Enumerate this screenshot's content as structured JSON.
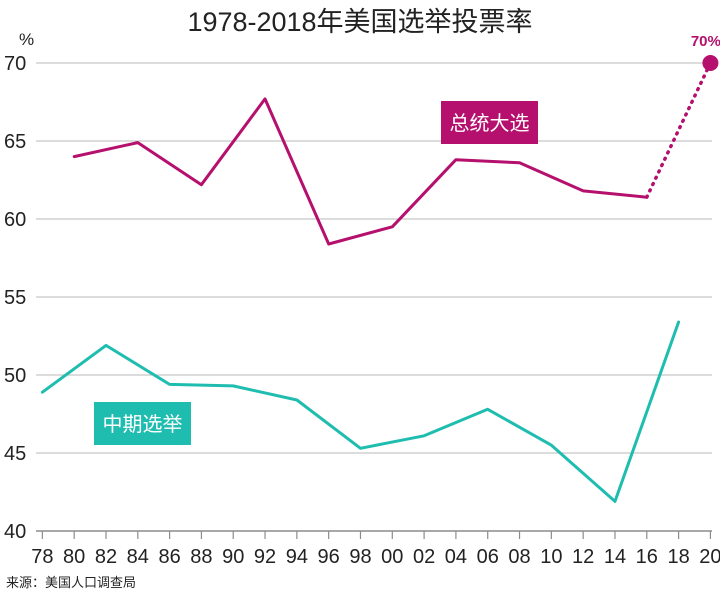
{
  "chart_data": {
    "type": "line",
    "title": "1978-2018年美国选举投票率",
    "y_unit": "%",
    "ylim": [
      40,
      70
    ],
    "xlim": [
      1977.6,
      2020.1
    ],
    "yticks": [
      40,
      45,
      50,
      55,
      60,
      65,
      70
    ],
    "ytick_labels": [
      "40",
      "45",
      "50",
      "55",
      "60",
      "65",
      "70"
    ],
    "xticks": [
      1978,
      1980,
      1982,
      1984,
      1986,
      1988,
      1990,
      1992,
      1994,
      1996,
      1998,
      2000,
      2002,
      2004,
      2006,
      2008,
      2010,
      2012,
      2014,
      2016,
      2018,
      2020
    ],
    "xtick_labels": [
      "78",
      "80",
      "82",
      "84",
      "86",
      "88",
      "90",
      "92",
      "94",
      "96",
      "98",
      "00",
      "02",
      "04",
      "06",
      "08",
      "10",
      "12",
      "14",
      "16",
      "18",
      "20"
    ],
    "grid": "horizontal",
    "series": [
      {
        "name": "总统大选",
        "color": "#b5106d",
        "x": [
          1980,
          1984,
          1988,
          1992,
          1996,
          2000,
          2004,
          2008,
          2012,
          2016
        ],
        "values": [
          64.0,
          64.9,
          62.2,
          67.7,
          58.4,
          59.5,
          63.8,
          63.6,
          61.8,
          61.4
        ]
      },
      {
        "name": "中期选举",
        "color": "#1fbdb0",
        "x": [
          1978,
          1982,
          1986,
          1990,
          1994,
          1998,
          2002,
          2006,
          2010,
          2014,
          2018
        ],
        "values": [
          48.9,
          51.9,
          49.4,
          49.3,
          48.4,
          45.3,
          46.1,
          47.8,
          45.5,
          41.9,
          53.4
        ]
      }
    ],
    "forecast": {
      "series": "总统大选",
      "from_x": 2016,
      "from_y": 61.4,
      "x": 2020,
      "y": 70,
      "label": "70%?",
      "color": "#b5106d"
    },
    "source": "来源：美国人口调查局"
  }
}
